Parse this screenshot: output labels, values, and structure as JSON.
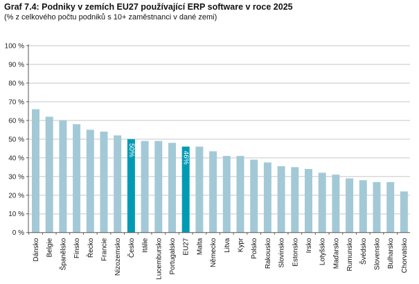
{
  "chart_data": {
    "type": "bar",
    "title": "Graf 7.4: Podniky v zemích EU27 používající ERP software v roce 2025",
    "subtitle": "(% z celkového počtu podniků s 10+ zaměstnanci v dané zemi)",
    "categories": [
      "Dánsko",
      "Belgie",
      "Španělsko",
      "Finsko",
      "Řecko",
      "Francie",
      "Nizozemsko",
      "Česko",
      "Itálie",
      "Lucembursko",
      "Portugalsko",
      "EU27",
      "Malta",
      "Německo",
      "Litva",
      "Kypr",
      "Polsko",
      "Rakousko",
      "Slovinsko",
      "Estonsko",
      "Irsko",
      "Lotyšsko",
      "Maďarsko",
      "Rumunsko",
      "Švédsko",
      "Slovensko",
      "Bulharsko",
      "Chorvatsko"
    ],
    "values": [
      66,
      62,
      60,
      58,
      55,
      54,
      52,
      50,
      49,
      49,
      48,
      46,
      46,
      43.5,
      41,
      41,
      39,
      37.5,
      35.5,
      35,
      34,
      32,
      31,
      29,
      28,
      27,
      27,
      22
    ],
    "highlight": {
      "Česko": "50%",
      "EU27": "46%"
    },
    "ylim": [
      0,
      100
    ],
    "yticks": [
      "0 %",
      "10 %",
      "20 %",
      "30 %",
      "40 %",
      "50 %",
      "60 %",
      "70 %",
      "80 %",
      "90 %",
      "100 %"
    ],
    "grid": true,
    "colors": {
      "bar": "#a3c9d7",
      "highlight": "#009bb3",
      "grid": "#d9d9d9"
    }
  }
}
